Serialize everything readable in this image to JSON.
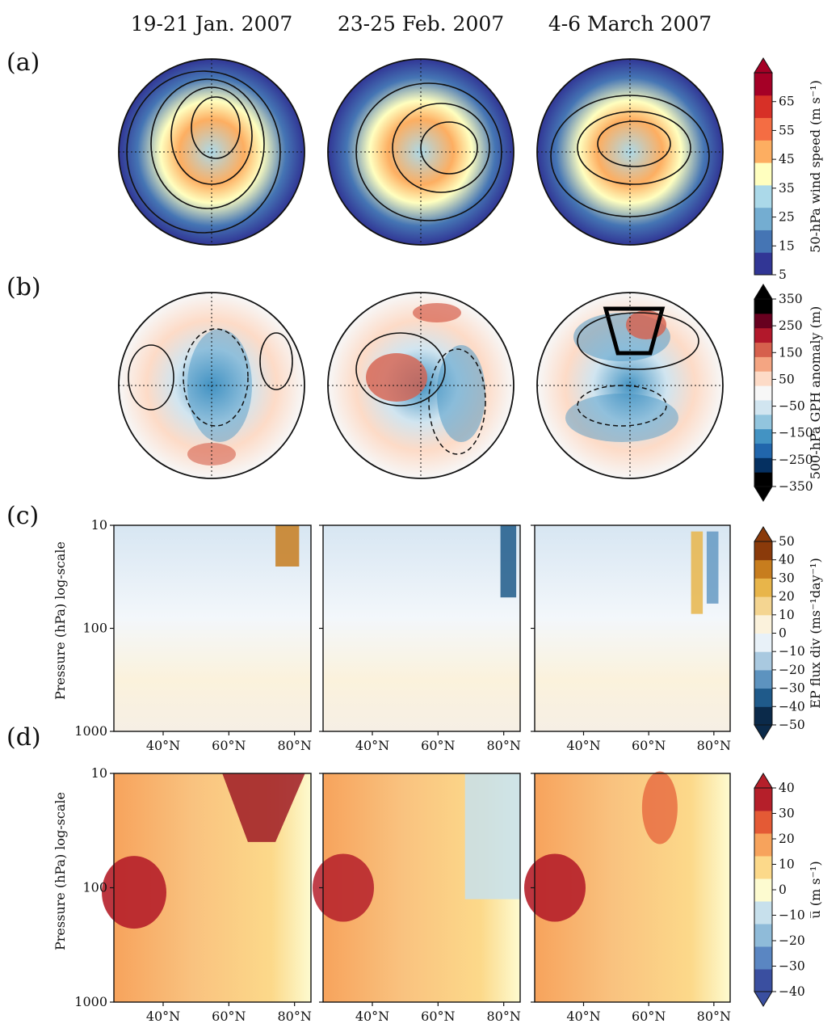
{
  "column_titles": [
    "19-21 Jan. 2007",
    "23-25 Feb. 2007",
    "4-6 March 2007"
  ],
  "panel_labels": [
    "(a)",
    "(b)",
    "(c)",
    "(d)"
  ],
  "chart_data": [
    {
      "type": "heatmap",
      "panel": "(a)",
      "projection": "polar-stereographic",
      "field": "50-hPa wind speed, filled; geopotential height, contours",
      "colorbar": {
        "label": "50-hPa wind speed (m s⁻¹)",
        "ticks": [
          5,
          15,
          25,
          35,
          45,
          55,
          65
        ],
        "tick_labels": [
          "5",
          "15",
          "25",
          "35",
          "45",
          "55",
          "65"
        ],
        "range": [
          5,
          75
        ],
        "extend": "max",
        "colors": [
          "#313695",
          "#4575b4",
          "#74add1",
          "#abd9e9",
          "#ffffbf",
          "#fdae61",
          "#f46d43",
          "#d73027",
          "#a50026"
        ]
      }
    },
    {
      "type": "heatmap",
      "panel": "(b)",
      "projection": "polar-stereographic",
      "field": "500-hPa geopotential height anomaly",
      "colorbar": {
        "label": "500-hPa GPH anomaly (m)",
        "ticks": [
          -350,
          -250,
          -150,
          -50,
          50,
          150,
          250,
          350
        ],
        "tick_labels": [
          "−350",
          "−250",
          "−150",
          "−50",
          "50",
          "150",
          "250",
          "350"
        ],
        "range": [
          -350,
          350
        ],
        "extend": "both",
        "colors": [
          "#000000",
          "#053061",
          "#2166ac",
          "#4393c3",
          "#92c5de",
          "#d1e5f0",
          "#f7f7f7",
          "#fddbc7",
          "#f4a582",
          "#d6604d",
          "#b2182b",
          "#67001f",
          "#000000"
        ]
      }
    },
    {
      "type": "heatmap",
      "panel": "(c)",
      "field": "EP flux divergence with EP flux vectors",
      "xlabel": "",
      "ylabel": "Pressure (hPa) log-scale",
      "x_ticks": [
        "40°N",
        "60°N",
        "80°N"
      ],
      "x_tick_values": [
        40,
        60,
        80
      ],
      "xlim": [
        25,
        85
      ],
      "y_ticks": [
        "10",
        "100",
        "1000"
      ],
      "y_tick_values": [
        10,
        100,
        1000
      ],
      "ylim": [
        1000,
        10
      ],
      "y_scale": "log",
      "colorbar": {
        "label": "EP flux div (ms⁻¹day⁻¹)",
        "ticks": [
          -50,
          -40,
          -30,
          -20,
          -10,
          0,
          10,
          20,
          30,
          40,
          50
        ],
        "tick_labels": [
          "−50",
          "−40",
          "−30",
          "−20",
          "−10",
          "0",
          "10",
          "20",
          "30",
          "40",
          "50"
        ],
        "range": [
          -50,
          50
        ],
        "extend": "both",
        "colors": [
          "#0b2a4a",
          "#1f5a8a",
          "#5d93bf",
          "#a9c9e0",
          "#e8f1f8",
          "#fbf2dc",
          "#f4d591",
          "#e8b54a",
          "#c77d1e",
          "#8a3a0a"
        ]
      }
    },
    {
      "type": "heatmap",
      "panel": "(d)",
      "field": "zonal-mean zonal wind",
      "xlabel": "",
      "ylabel": "Pressure (hPa) log-scale",
      "x_ticks": [
        "40°N",
        "60°N",
        "80°N"
      ],
      "x_tick_values": [
        40,
        60,
        80
      ],
      "xlim": [
        25,
        85
      ],
      "y_ticks": [
        "10",
        "100",
        "1000"
      ],
      "y_tick_values": [
        10,
        100,
        1000
      ],
      "ylim": [
        1000,
        10
      ],
      "y_scale": "log",
      "colorbar": {
        "label": "u̅ (m s⁻¹)",
        "ticks": [
          -40,
          -30,
          -20,
          -10,
          0,
          10,
          20,
          30,
          40
        ],
        "tick_labels": [
          "−40",
          "−30",
          "−20",
          "−10",
          "0",
          "10",
          "20",
          "30",
          "40"
        ],
        "range": [
          -40,
          40
        ],
        "extend": "both",
        "colors": [
          "#3a4fa0",
          "#5a86c2",
          "#8fbbd9",
          "#c7e0ec",
          "#fdfbd0",
          "#fcd98a",
          "#f7a35c",
          "#e45a35",
          "#b51f2a"
        ]
      }
    }
  ]
}
